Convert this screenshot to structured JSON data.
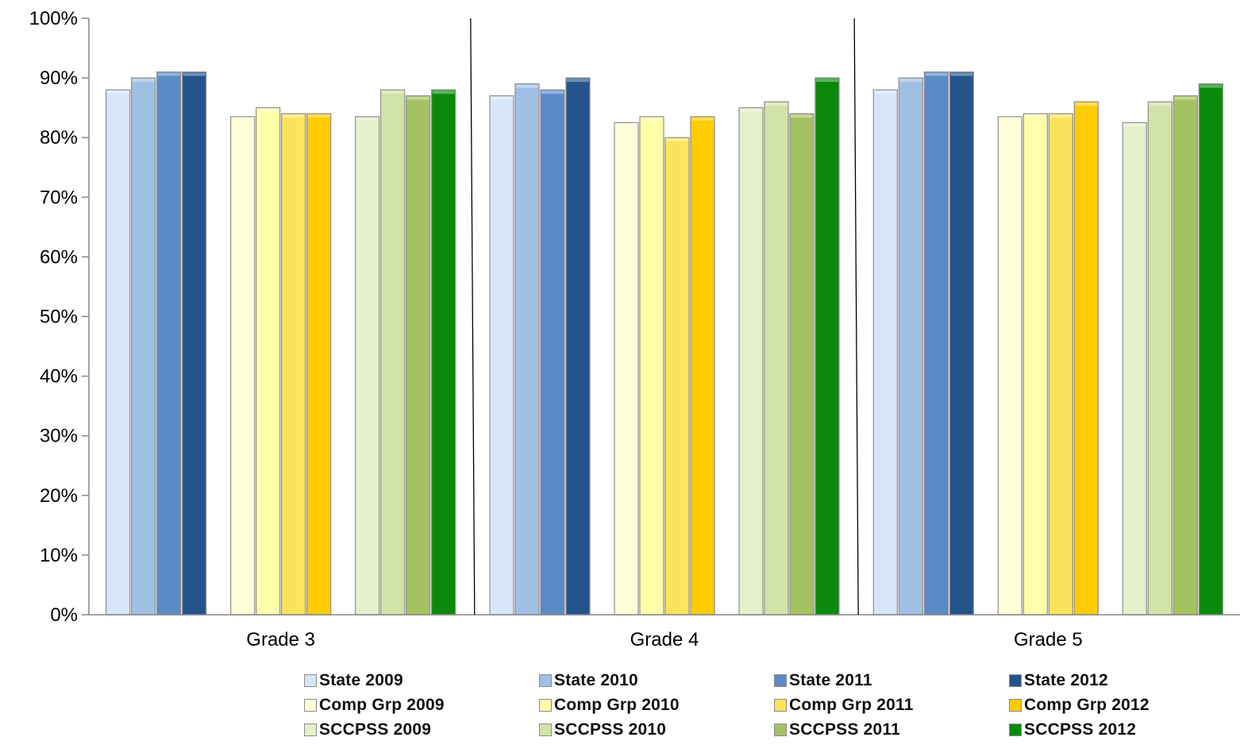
{
  "chart_data": {
    "type": "bar",
    "categories": [
      "Grade 3",
      "Grade 4",
      "Grade 5"
    ],
    "ylim": [
      0,
      100
    ],
    "yticks": [
      "0%",
      "10%",
      "20%",
      "30%",
      "40%",
      "50%",
      "60%",
      "70%",
      "80%",
      "90%",
      "100%"
    ],
    "grid": false,
    "legend_position": "bottom",
    "series": [
      {
        "name": "State 2009",
        "color": "#d7e5fa",
        "values": [
          88,
          87,
          88
        ]
      },
      {
        "name": "State 2010",
        "color": "#a0bfe4",
        "values": [
          90,
          89,
          90
        ]
      },
      {
        "name": "State 2011",
        "color": "#5b8ac9",
        "values": [
          91,
          88,
          91
        ]
      },
      {
        "name": "State 2012",
        "color": "#25548a",
        "values": [
          91,
          90,
          91
        ]
      },
      {
        "name": "Comp Grp  2009",
        "color": "#fffed8",
        "values": [
          83.5,
          82.5,
          83.5
        ]
      },
      {
        "name": "Comp Grp  2010",
        "color": "#ffffaa",
        "values": [
          85,
          83.5,
          84
        ]
      },
      {
        "name": "Comp Grp  2011",
        "color": "#fce35c",
        "values": [
          84,
          80,
          84
        ]
      },
      {
        "name": "Comp Grp  2012",
        "color": "#ffcc00",
        "values": [
          84,
          83.5,
          86
        ]
      },
      {
        "name": "SCCPSS 2009",
        "color": "#e4f0cc",
        "values": [
          83.5,
          85,
          82.5
        ]
      },
      {
        "name": "SCCPSS 2010",
        "color": "#d2e3a8",
        "values": [
          88,
          86,
          86
        ]
      },
      {
        "name": "SCCPSS 2011",
        "color": "#a5c262",
        "values": [
          87,
          84,
          87
        ]
      },
      {
        "name": "SCCPSS 2012",
        "color": "#0a8a0a",
        "values": [
          88,
          90,
          89
        ]
      }
    ]
  }
}
